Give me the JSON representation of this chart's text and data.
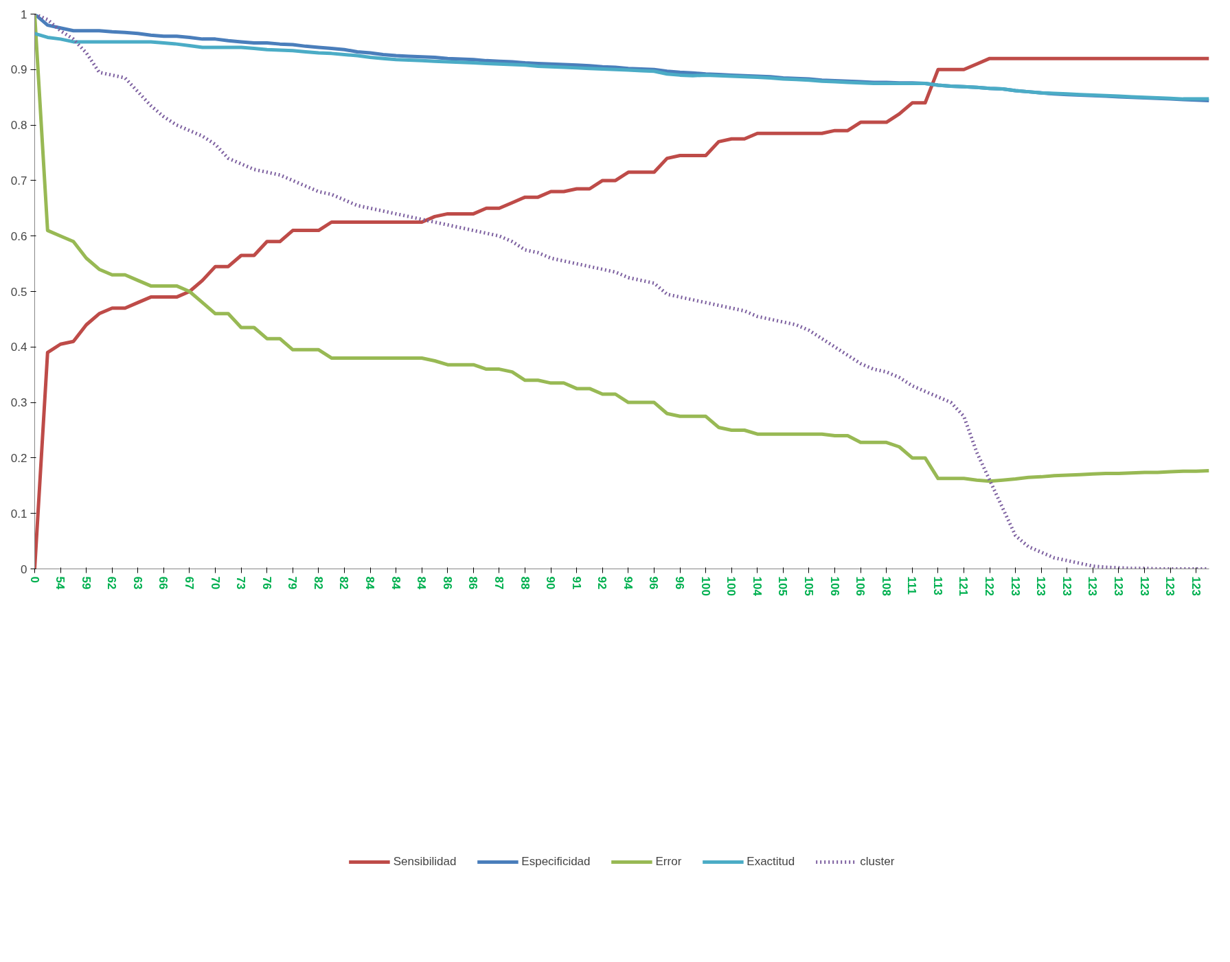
{
  "chart_data": {
    "type": "line",
    "categories": [
      "0",
      null,
      "54",
      null,
      "59",
      null,
      "62",
      null,
      "63",
      null,
      "66",
      null,
      "67",
      null,
      "70",
      null,
      "73",
      null,
      "76",
      null,
      "79",
      null,
      "82",
      null,
      "82",
      null,
      "84",
      null,
      "84",
      null,
      "84",
      null,
      "86",
      null,
      "86",
      null,
      "87",
      null,
      "88",
      null,
      "90",
      null,
      "91",
      null,
      "92",
      null,
      "94",
      null,
      "96",
      null,
      "96",
      null,
      "100",
      null,
      "100",
      null,
      "104",
      null,
      "105",
      null,
      "105",
      null,
      "106",
      null,
      "106",
      null,
      "108",
      null,
      "111",
      null,
      "113",
      null,
      "121",
      null,
      "122",
      null,
      "123",
      null,
      "123",
      null,
      "123",
      null,
      "123",
      null,
      "123",
      null,
      "123",
      null,
      "123",
      null,
      "123",
      null
    ],
    "ylim": [
      0,
      1
    ],
    "yticks": [
      0,
      0.1,
      0.2,
      0.3,
      0.4,
      0.5,
      0.6,
      0.7,
      0.8,
      0.9,
      1
    ],
    "grid": false,
    "legend": "bottom",
    "marker": "none",
    "series": [
      {
        "name": "Sensibilidad",
        "color": "#be4b48",
        "values": [
          0,
          0.39,
          0.405,
          0.41,
          0.44,
          0.46,
          0.47,
          0.47,
          0.48,
          0.49,
          0.49,
          0.49,
          0.5,
          0.52,
          0.545,
          0.545,
          0.565,
          0.565,
          0.59,
          0.59,
          0.61,
          0.61,
          0.61,
          0.625,
          0.625,
          0.625,
          0.625,
          0.625,
          0.625,
          0.625,
          0.625,
          0.635,
          0.64,
          0.64,
          0.64,
          0.65,
          0.65,
          0.66,
          0.67,
          0.67,
          0.68,
          0.68,
          0.685,
          0.685,
          0.7,
          0.7,
          0.715,
          0.715,
          0.715,
          0.74,
          0.745,
          0.745,
          0.745,
          0.77,
          0.775,
          0.775,
          0.785,
          0.785,
          0.785,
          0.785,
          0.785,
          0.785,
          0.79,
          0.79,
          0.805,
          0.805,
          0.805,
          0.82,
          0.84,
          0.84,
          0.9,
          0.9,
          0.9,
          0.91,
          0.92,
          0.92,
          0.92,
          0.92,
          0.92,
          0.92,
          0.92,
          0.92,
          0.92,
          0.92,
          0.92,
          0.92,
          0.92,
          0.92,
          0.92,
          0.92,
          0.92,
          0.92
        ]
      },
      {
        "name": "Especificidad",
        "color": "#4a7ebb",
        "values": [
          1,
          0.98,
          0.975,
          0.97,
          0.97,
          0.97,
          0.968,
          0.967,
          0.965,
          0.962,
          0.96,
          0.96,
          0.958,
          0.955,
          0.955,
          0.952,
          0.95,
          0.948,
          0.948,
          0.946,
          0.945,
          0.942,
          0.94,
          0.938,
          0.936,
          0.932,
          0.93,
          0.927,
          0.925,
          0.924,
          0.923,
          0.922,
          0.92,
          0.919,
          0.918,
          0.916,
          0.915,
          0.914,
          0.912,
          0.911,
          0.91,
          0.909,
          0.908,
          0.907,
          0.905,
          0.904,
          0.902,
          0.901,
          0.9,
          0.897,
          0.895,
          0.894,
          0.892,
          0.891,
          0.89,
          0.889,
          0.888,
          0.887,
          0.885,
          0.884,
          0.883,
          0.881,
          0.88,
          0.879,
          0.878,
          0.877,
          0.877,
          0.876,
          0.876,
          0.875,
          0.872,
          0.87,
          0.869,
          0.868,
          0.866,
          0.865,
          0.862,
          0.86,
          0.858,
          0.856,
          0.855,
          0.854,
          0.853,
          0.852,
          0.851,
          0.85,
          0.849,
          0.848,
          0.847,
          0.846,
          0.845,
          0.844
        ]
      },
      {
        "name": "Error",
        "color": "#98b954",
        "values": [
          1,
          0.61,
          0.6,
          0.59,
          0.56,
          0.54,
          0.53,
          0.53,
          0.52,
          0.51,
          0.51,
          0.51,
          0.5,
          0.48,
          0.46,
          0.46,
          0.435,
          0.435,
          0.415,
          0.415,
          0.395,
          0.395,
          0.395,
          0.38,
          0.38,
          0.38,
          0.38,
          0.38,
          0.38,
          0.38,
          0.38,
          0.375,
          0.368,
          0.368,
          0.368,
          0.36,
          0.36,
          0.355,
          0.34,
          0.34,
          0.335,
          0.335,
          0.325,
          0.325,
          0.315,
          0.315,
          0.3,
          0.3,
          0.3,
          0.28,
          0.275,
          0.275,
          0.275,
          0.255,
          0.25,
          0.25,
          0.243,
          0.243,
          0.243,
          0.243,
          0.243,
          0.243,
          0.24,
          0.24,
          0.228,
          0.228,
          0.228,
          0.22,
          0.2,
          0.2,
          0.163,
          0.163,
          0.163,
          0.16,
          0.158,
          0.16,
          0.162,
          0.165,
          0.166,
          0.168,
          0.169,
          0.17,
          0.171,
          0.172,
          0.172,
          0.173,
          0.174,
          0.174,
          0.175,
          0.176,
          0.176,
          0.177
        ]
      },
      {
        "name": "Exactitud",
        "color": "#4bacc6",
        "values": [
          0.965,
          0.958,
          0.955,
          0.95,
          0.95,
          0.95,
          0.95,
          0.95,
          0.95,
          0.95,
          0.948,
          0.946,
          0.943,
          0.94,
          0.94,
          0.94,
          0.94,
          0.938,
          0.936,
          0.935,
          0.934,
          0.932,
          0.93,
          0.929,
          0.927,
          0.925,
          0.922,
          0.92,
          0.918,
          0.917,
          0.916,
          0.915,
          0.914,
          0.913,
          0.912,
          0.911,
          0.91,
          0.909,
          0.908,
          0.906,
          0.905,
          0.904,
          0.903,
          0.902,
          0.901,
          0.9,
          0.899,
          0.898,
          0.897,
          0.892,
          0.89,
          0.889,
          0.89,
          0.889,
          0.888,
          0.887,
          0.886,
          0.885,
          0.883,
          0.882,
          0.881,
          0.879,
          0.878,
          0.877,
          0.876,
          0.875,
          0.875,
          0.875,
          0.875,
          0.875,
          0.872,
          0.87,
          0.869,
          0.868,
          0.866,
          0.865,
          0.862,
          0.86,
          0.858,
          0.857,
          0.856,
          0.855,
          0.854,
          0.853,
          0.852,
          0.851,
          0.85,
          0.849,
          0.848,
          0.847,
          0.847,
          0.847
        ]
      },
      {
        "name": "cluster",
        "color": "#7d60a0",
        "line_style": "dotted",
        "values": [
          1,
          0.99,
          0.97,
          0.955,
          0.93,
          0.895,
          0.89,
          0.885,
          0.86,
          0.835,
          0.815,
          0.8,
          0.79,
          0.78,
          0.765,
          0.74,
          0.73,
          0.72,
          0.715,
          0.71,
          0.7,
          0.69,
          0.68,
          0.675,
          0.665,
          0.655,
          0.65,
          0.645,
          0.64,
          0.635,
          0.63,
          0.625,
          0.62,
          0.615,
          0.61,
          0.605,
          0.6,
          0.59,
          0.575,
          0.57,
          0.56,
          0.555,
          0.55,
          0.545,
          0.54,
          0.535,
          0.525,
          0.52,
          0.515,
          0.495,
          0.49,
          0.485,
          0.48,
          0.475,
          0.47,
          0.465,
          0.455,
          0.45,
          0.445,
          0.44,
          0.43,
          0.415,
          0.4,
          0.385,
          0.37,
          0.36,
          0.355,
          0.345,
          0.33,
          0.32,
          0.31,
          0.3,
          0.275,
          0.21,
          0.16,
          0.11,
          0.06,
          0.04,
          0.03,
          0.02,
          0.015,
          0.01,
          0.005,
          0.003,
          0.002,
          0.001,
          0.001,
          0,
          0,
          0,
          0,
          0
        ]
      }
    ]
  }
}
